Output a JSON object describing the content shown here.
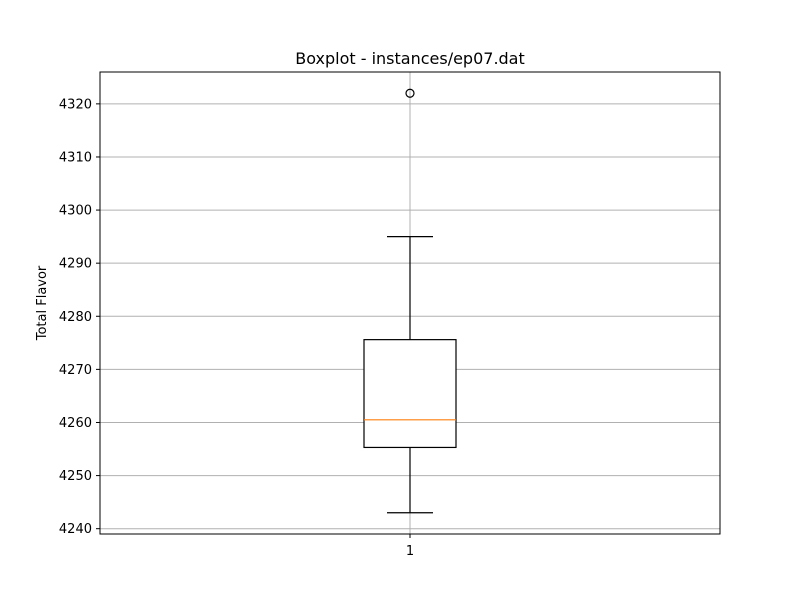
{
  "chart_data": {
    "type": "boxplot",
    "title": "Boxplot - instances/ep07.dat",
    "xlabel": "",
    "ylabel": "Total Flavor",
    "categories": [
      "1"
    ],
    "ylim": [
      4239,
      4326
    ],
    "yticks": [
      4240,
      4250,
      4260,
      4270,
      4280,
      4290,
      4300,
      4310,
      4320
    ],
    "grid": true,
    "boxes": [
      {
        "label": "1",
        "whisker_low": 4243,
        "q1": 4255.3,
        "median": 4260.5,
        "q3": 4275.6,
        "whisker_high": 4295,
        "outliers": [
          4322
        ]
      }
    ],
    "colors": {
      "box": "#000000",
      "median": "#ff7f0e",
      "grid": "#b0b0b0"
    }
  }
}
